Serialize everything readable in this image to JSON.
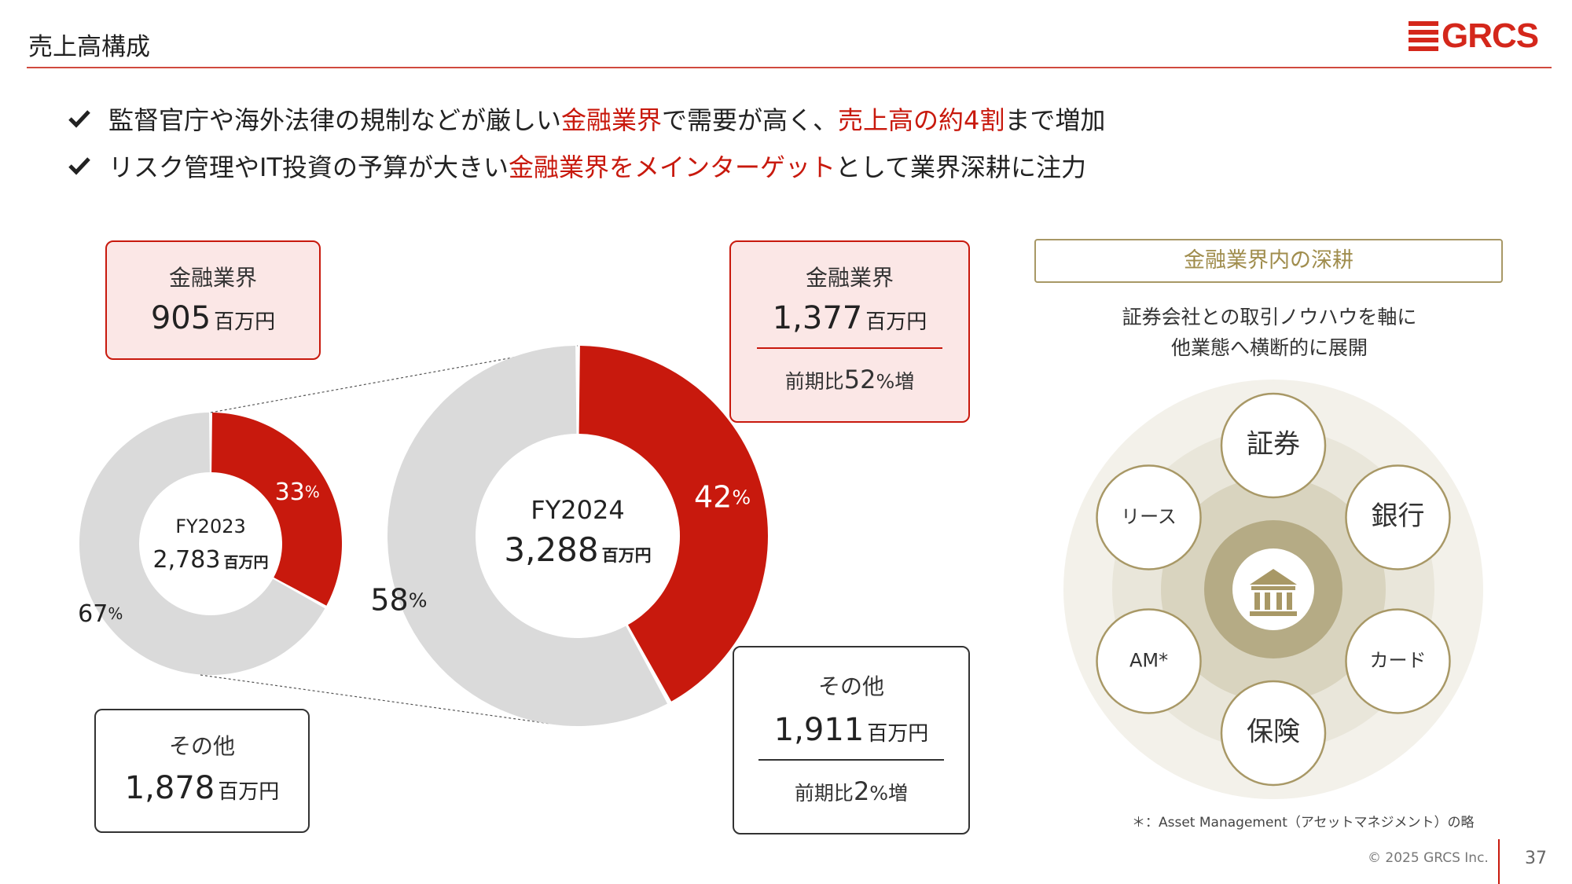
{
  "page": {
    "title": "売上高構成",
    "logo_text": "GRCS",
    "copyright": "© 2025 GRCS Inc.",
    "page_number": "37",
    "footnote": "＊：Asset Management（アセットマネジメント）の略"
  },
  "bullets": [
    {
      "segments": [
        {
          "text": "監督官庁や海外法律の規制などが厳しい",
          "highlight": false
        },
        {
          "text": "金融業界",
          "highlight": true
        },
        {
          "text": "で需要が高く、",
          "highlight": false
        },
        {
          "text": "売上高の約4割",
          "highlight": true
        },
        {
          "text": "まで増加",
          "highlight": false
        }
      ]
    },
    {
      "segments": [
        {
          "text": "リスク管理やIT投資の予算が大きい",
          "highlight": false
        },
        {
          "text": "金融業界をメインターゲット",
          "highlight": true
        },
        {
          "text": "として業界深耕に注力",
          "highlight": false
        }
      ]
    }
  ],
  "boxes": {
    "fy2023_finance": {
      "label": "金融業界",
      "value": "905",
      "unit": "百万円"
    },
    "fy2023_other": {
      "label": "その他",
      "value": "1,878",
      "unit": "百万円"
    },
    "fy2024_finance": {
      "label": "金融業界",
      "value": "1,377",
      "unit": "百万円",
      "growth_prefix": "前期比",
      "growth_value": "52",
      "growth_suffix": "%増"
    },
    "fy2024_other": {
      "label": "その他",
      "value": "1,911",
      "unit": "百万円",
      "growth_prefix": "前期比",
      "growth_value": "2",
      "growth_suffix": "%増"
    }
  },
  "chart_data": [
    {
      "type": "pie",
      "donut": true,
      "center_title": "FY2023",
      "center_value": "2,783",
      "center_unit": "百万円",
      "slices": [
        {
          "label": "33",
          "percent": 33,
          "color": "#c8190d"
        },
        {
          "label": "67",
          "percent": 67,
          "color": "#dadada"
        }
      ],
      "percent_sign": "%"
    },
    {
      "type": "pie",
      "donut": true,
      "center_title": "FY2024",
      "center_value": "3,288",
      "center_unit": "百万円",
      "slices": [
        {
          "label": "42",
          "percent": 42,
          "color": "#c8190d"
        },
        {
          "label": "58",
          "percent": 58,
          "color": "#dadada"
        }
      ],
      "percent_sign": "%"
    }
  ],
  "deepening": {
    "title": "金融業界内の深耕",
    "description_lines": [
      "証券会社との取引ノウハウを軸に",
      "他業態へ横断的に展開"
    ],
    "center_icon": "bank-icon",
    "nodes": [
      "証券",
      "銀行",
      "カード",
      "保険",
      "AM*",
      "リース"
    ]
  },
  "colors": {
    "accent_red": "#c8190d",
    "gray_slice": "#dadada",
    "gold": "#a89866",
    "finance_box_bg": "#fbe7e6"
  }
}
